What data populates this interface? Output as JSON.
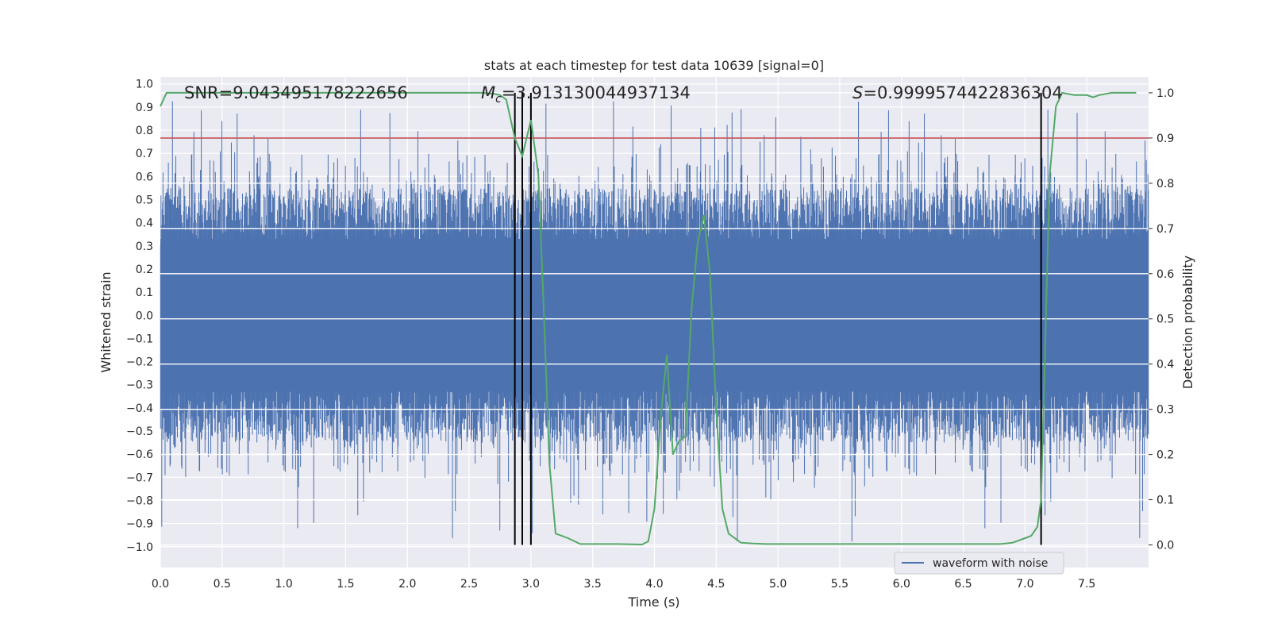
{
  "chart_data": {
    "type": "line",
    "title": "stats at each timestep for test data 10639 [signal=0]",
    "xlabel": "Time (s)",
    "ylabel_left": "Whitened strain",
    "ylabel_right": "Detection probability",
    "xlim": [
      0,
      8
    ],
    "ylim_left": [
      -1.09,
      1.03
    ],
    "ylim_right": [
      -0.05,
      1.035
    ],
    "x_ticks": [
      "0.0",
      "0.5",
      "1.0",
      "1.5",
      "2.0",
      "2.5",
      "3.0",
      "3.5",
      "4.0",
      "4.5",
      "5.0",
      "5.5",
      "6.0",
      "6.5",
      "7.0",
      "7.5"
    ],
    "y_left_ticks": [
      "1.0",
      "0.9",
      "0.8",
      "0.7",
      "0.6",
      "0.5",
      "0.4",
      "0.3",
      "0.2",
      "0.1",
      "0.0",
      "−0.1",
      "−0.2",
      "−0.3",
      "−0.4",
      "−0.5",
      "−0.6",
      "−0.7",
      "−0.8",
      "−0.9",
      "−1.0"
    ],
    "y_right_ticks": [
      "1.0",
      "0.9",
      "0.8",
      "0.7",
      "0.6",
      "0.5",
      "0.4",
      "0.3",
      "0.2",
      "0.1",
      "0.0"
    ],
    "annotations": {
      "snr": "SNR=9.043495178222656",
      "mc_symbol": "M",
      "mc_sub": "c",
      "mc_value": "=3.913130044937134",
      "s_symbol": "S",
      "s_value": "=0.9999574422836304"
    },
    "threshold": {
      "value": 0.9,
      "axis": "right",
      "color": "#c44e52"
    },
    "vertical_markers": [
      2.87,
      2.93,
      3.0,
      7.13
    ],
    "waveform": {
      "name": "waveform with noise",
      "color": "#4c72b0",
      "core_amplitude": 0.33,
      "typical_peak": 0.6,
      "max_peak": 0.93,
      "min_peak": -1.0
    },
    "probability": {
      "color": "#55a868",
      "x": [
        0.0,
        0.05,
        0.1,
        0.5,
        1.0,
        1.5,
        2.0,
        2.5,
        2.6,
        2.7,
        2.75,
        2.8,
        2.87,
        2.93,
        3.0,
        3.06,
        3.1,
        3.15,
        3.2,
        3.25,
        3.3,
        3.4,
        3.5,
        3.7,
        3.9,
        3.95,
        4.0,
        4.05,
        4.1,
        4.15,
        4.2,
        4.25,
        4.3,
        4.35,
        4.4,
        4.45,
        4.5,
        4.55,
        4.6,
        4.7,
        4.8,
        4.9,
        5.0,
        5.2,
        5.5,
        6.0,
        6.5,
        6.8,
        6.9,
        7.0,
        7.05,
        7.1,
        7.13,
        7.2,
        7.25,
        7.3,
        7.4,
        7.5,
        7.55,
        7.6,
        7.7,
        7.8,
        7.9
      ],
      "y": [
        0.97,
        1.0,
        1.0,
        1.0,
        1.0,
        1.0,
        1.0,
        1.0,
        1.0,
        0.998,
        0.995,
        0.985,
        0.9,
        0.86,
        0.94,
        0.82,
        0.55,
        0.18,
        0.025,
        0.02,
        0.015,
        0.002,
        0.002,
        0.002,
        0.001,
        0.008,
        0.08,
        0.28,
        0.42,
        0.2,
        0.23,
        0.24,
        0.52,
        0.67,
        0.73,
        0.6,
        0.3,
        0.08,
        0.025,
        0.005,
        0.003,
        0.002,
        0.002,
        0.002,
        0.002,
        0.002,
        0.002,
        0.002,
        0.005,
        0.015,
        0.02,
        0.04,
        0.1,
        0.82,
        0.97,
        1.0,
        0.995,
        0.995,
        0.99,
        0.995,
        1.0,
        1.0,
        1.0
      ]
    },
    "legend": {
      "placement": "lower-right",
      "entries": [
        "waveform with noise"
      ]
    },
    "grid": true
  }
}
